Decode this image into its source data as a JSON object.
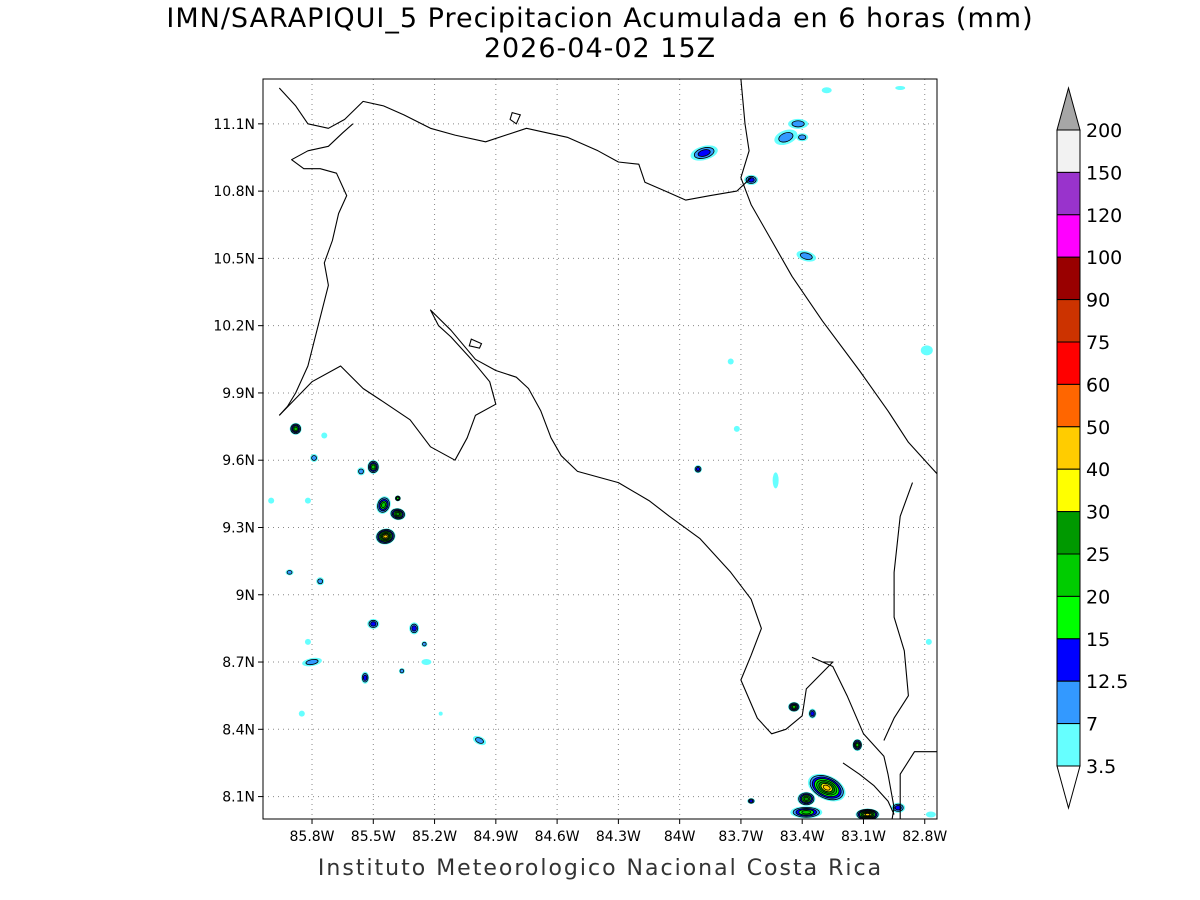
{
  "title": {
    "line1": "IMN/SARAPIQUI_5 Precipitacion Acumulada en 6 horas (mm)",
    "line2": "2026-04-02 15Z"
  },
  "footer": "Instituto Meteorologico Nacional Costa Rica",
  "map": {
    "lon_range": [
      -86.04,
      -82.74
    ],
    "lat_range": [
      8.0,
      11.3
    ],
    "lon_ticks": [
      {
        "v": -85.8,
        "label": "85.8W"
      },
      {
        "v": -85.5,
        "label": "85.5W"
      },
      {
        "v": -85.2,
        "label": "85.2W"
      },
      {
        "v": -84.9,
        "label": "84.9W"
      },
      {
        "v": -84.6,
        "label": "84.6W"
      },
      {
        "v": -84.3,
        "label": "84.3W"
      },
      {
        "v": -84.0,
        "label": "84W"
      },
      {
        "v": -83.7,
        "label": "83.7W"
      },
      {
        "v": -83.4,
        "label": "83.4W"
      },
      {
        "v": -83.1,
        "label": "83.1W"
      },
      {
        "v": -82.8,
        "label": "82.8W"
      }
    ],
    "lat_ticks": [
      {
        "v": 8.1,
        "label": "8.1N"
      },
      {
        "v": 8.4,
        "label": "8.4N"
      },
      {
        "v": 8.7,
        "label": "8.7N"
      },
      {
        "v": 9.0,
        "label": "9N"
      },
      {
        "v": 9.3,
        "label": "9.3N"
      },
      {
        "v": 9.6,
        "label": "9.6N"
      },
      {
        "v": 9.9,
        "label": "9.9N"
      },
      {
        "v": 10.2,
        "label": "10.2N"
      },
      {
        "v": 10.5,
        "label": "10.5N"
      },
      {
        "v": 10.8,
        "label": "10.8N"
      },
      {
        "v": 11.1,
        "label": "11.1N"
      }
    ],
    "grid": "dotted",
    "coastline": [
      [
        [
          -85.96,
          11.26
        ],
        [
          -85.88,
          11.18
        ],
        [
          -85.82,
          11.1
        ],
        [
          -85.72,
          11.08
        ],
        [
          -85.64,
          11.12
        ],
        [
          -85.55,
          11.2
        ],
        [
          -85.45,
          11.18
        ],
        [
          -85.35,
          11.14
        ],
        [
          -85.22,
          11.08
        ],
        [
          -85.1,
          11.05
        ],
        [
          -84.95,
          11.02
        ],
        [
          -84.75,
          11.08
        ],
        [
          -84.55,
          11.04
        ],
        [
          -84.4,
          10.98
        ],
        [
          -84.3,
          10.93
        ],
        [
          -84.2,
          10.92
        ],
        [
          -84.17,
          10.84
        ],
        [
          -84.07,
          10.8
        ],
        [
          -83.97,
          10.76
        ],
        [
          -83.85,
          10.78
        ],
        [
          -83.72,
          10.8
        ],
        [
          -83.65,
          10.86
        ]
      ],
      [
        [
          -83.7,
          11.3
        ],
        [
          -83.68,
          11.1
        ],
        [
          -83.66,
          10.98
        ],
        [
          -83.7,
          10.86
        ],
        [
          -83.65,
          10.74
        ],
        [
          -83.55,
          10.58
        ],
        [
          -83.45,
          10.42
        ],
        [
          -83.3,
          10.22
        ],
        [
          -83.12,
          10.0
        ],
        [
          -82.98,
          9.82
        ],
        [
          -82.88,
          9.68
        ],
        [
          -82.78,
          9.58
        ],
        [
          -82.74,
          9.54
        ]
      ],
      [
        [
          -85.96,
          9.8
        ],
        [
          -85.92,
          9.84
        ],
        [
          -85.88,
          9.9
        ],
        [
          -85.82,
          10.02
        ],
        [
          -85.77,
          10.2
        ],
        [
          -85.72,
          10.38
        ],
        [
          -85.74,
          10.48
        ],
        [
          -85.7,
          10.58
        ],
        [
          -85.67,
          10.7
        ],
        [
          -85.63,
          10.78
        ],
        [
          -85.68,
          10.88
        ],
        [
          -85.76,
          10.9
        ],
        [
          -85.84,
          10.9
        ],
        [
          -85.9,
          10.94
        ],
        [
          -85.82,
          10.98
        ],
        [
          -85.72,
          11.0
        ],
        [
          -85.65,
          11.06
        ],
        [
          -85.6,
          11.1
        ]
      ],
      [
        [
          -85.96,
          9.8
        ],
        [
          -85.8,
          9.95
        ],
        [
          -85.66,
          10.02
        ],
        [
          -85.55,
          9.92
        ],
        [
          -85.45,
          9.86
        ],
        [
          -85.32,
          9.78
        ],
        [
          -85.22,
          9.66
        ],
        [
          -85.1,
          9.6
        ],
        [
          -85.04,
          9.7
        ],
        [
          -85.0,
          9.8
        ],
        [
          -84.9,
          9.85
        ],
        [
          -84.93,
          9.95
        ],
        [
          -85.02,
          10.05
        ],
        [
          -85.12,
          10.15
        ],
        [
          -85.18,
          10.2
        ],
        [
          -85.22,
          10.27
        ],
        [
          -85.12,
          10.18
        ],
        [
          -85.0,
          10.05
        ],
        [
          -84.9,
          10.0
        ],
        [
          -84.8,
          9.97
        ],
        [
          -84.74,
          9.92
        ],
        [
          -84.68,
          9.82
        ],
        [
          -84.63,
          9.7
        ],
        [
          -84.58,
          9.62
        ],
        [
          -84.5,
          9.55
        ],
        [
          -84.3,
          9.5
        ],
        [
          -84.15,
          9.42
        ],
        [
          -84.05,
          9.35
        ],
        [
          -83.9,
          9.25
        ],
        [
          -83.75,
          9.1
        ],
        [
          -83.65,
          8.98
        ],
        [
          -83.6,
          8.85
        ],
        [
          -83.65,
          8.73
        ],
        [
          -83.7,
          8.62
        ],
        [
          -83.62,
          8.45
        ],
        [
          -83.55,
          8.38
        ],
        [
          -83.48,
          8.4
        ],
        [
          -83.4,
          8.46
        ],
        [
          -83.38,
          8.58
        ],
        [
          -83.25,
          8.7
        ],
        [
          -83.3,
          8.7
        ],
        [
          -83.35,
          8.72
        ],
        [
          -83.25,
          8.68
        ],
        [
          -83.18,
          8.55
        ],
        [
          -83.1,
          8.38
        ],
        [
          -83.0,
          8.28
        ],
        [
          -82.98,
          8.2
        ],
        [
          -82.95,
          8.05
        ],
        [
          -82.96,
          8.0
        ]
      ],
      [
        [
          -83.2,
          8.25
        ],
        [
          -83.12,
          8.2
        ],
        [
          -83.05,
          8.15
        ],
        [
          -82.98,
          8.08
        ],
        [
          -82.95,
          8.02
        ]
      ],
      [
        [
          -82.74,
          8.3
        ],
        [
          -82.85,
          8.3
        ],
        [
          -82.92,
          8.2
        ],
        [
          -82.92,
          8.0
        ]
      ],
      [
        [
          -82.86,
          9.5
        ],
        [
          -82.92,
          9.35
        ],
        [
          -82.95,
          9.1
        ],
        [
          -82.95,
          8.9
        ],
        [
          -82.9,
          8.75
        ],
        [
          -82.88,
          8.55
        ],
        [
          -82.95,
          8.45
        ],
        [
          -83.0,
          8.35
        ]
      ]
    ],
    "islands": [
      [
        [
          -84.82,
          11.15
        ],
        [
          -84.78,
          11.14
        ],
        [
          -84.8,
          11.1
        ],
        [
          -84.83,
          11.12
        ]
      ],
      [
        [
          -85.02,
          10.14
        ],
        [
          -84.97,
          10.12
        ],
        [
          -84.98,
          10.1
        ],
        [
          -85.03,
          10.11
        ]
      ]
    ],
    "cells": [
      {
        "lon": -83.88,
        "lat": 10.97,
        "rx": 14,
        "ry": 7,
        "level": 3,
        "rot": -15
      },
      {
        "lon": -83.48,
        "lat": 11.04,
        "rx": 12,
        "ry": 7,
        "level": 2,
        "rot": -20
      },
      {
        "lon": -83.42,
        "lat": 11.1,
        "rx": 10,
        "ry": 5,
        "level": 2,
        "rot": 0
      },
      {
        "lon": -83.4,
        "lat": 11.04,
        "rx": 6,
        "ry": 4,
        "level": 2,
        "rot": 0
      },
      {
        "lon": -83.65,
        "lat": 10.85,
        "rx": 7,
        "ry": 5,
        "level": 3,
        "rot": 0
      },
      {
        "lon": -83.28,
        "lat": 11.25,
        "rx": 5,
        "ry": 3,
        "level": 1,
        "rot": 0
      },
      {
        "lon": -82.92,
        "lat": 11.26,
        "rx": 5,
        "ry": 2,
        "level": 1,
        "rot": 0
      },
      {
        "lon": -83.38,
        "lat": 10.51,
        "rx": 10,
        "ry": 5,
        "level": 2,
        "rot": 15
      },
      {
        "lon": -82.79,
        "lat": 10.09,
        "rx": 6,
        "ry": 5,
        "level": 1,
        "rot": 0
      },
      {
        "lon": -83.75,
        "lat": 10.04,
        "rx": 3,
        "ry": 3,
        "level": 1,
        "rot": 0
      },
      {
        "lon": -83.72,
        "lat": 9.74,
        "rx": 3,
        "ry": 3,
        "level": 1,
        "rot": 0
      },
      {
        "lon": -83.91,
        "lat": 9.56,
        "rx": 4,
        "ry": 4,
        "level": 3,
        "rot": 0
      },
      {
        "lon": -83.53,
        "lat": 9.51,
        "rx": 3,
        "ry": 8,
        "level": 1,
        "rot": 0
      },
      {
        "lon": -85.88,
        "lat": 9.74,
        "rx": 6,
        "ry": 6,
        "level": 5,
        "rot": 0
      },
      {
        "lon": -85.79,
        "lat": 9.61,
        "rx": 4,
        "ry": 4,
        "level": 2,
        "rot": 0
      },
      {
        "lon": -85.74,
        "lat": 9.71,
        "rx": 3,
        "ry": 3,
        "level": 1,
        "rot": 0
      },
      {
        "lon": -85.56,
        "lat": 9.55,
        "rx": 4,
        "ry": 4,
        "level": 2,
        "rot": 0
      },
      {
        "lon": -85.5,
        "lat": 9.57,
        "rx": 6,
        "ry": 7,
        "level": 5,
        "rot": 0
      },
      {
        "lon": -85.45,
        "lat": 9.4,
        "rx": 7,
        "ry": 9,
        "level": 5,
        "rot": 20
      },
      {
        "lon": -85.38,
        "lat": 9.36,
        "rx": 8,
        "ry": 6,
        "level": 6,
        "rot": 10
      },
      {
        "lon": -85.44,
        "lat": 9.26,
        "rx": 10,
        "ry": 8,
        "level": 8,
        "rot": -10
      },
      {
        "lon": -85.38,
        "lat": 9.43,
        "rx": 3,
        "ry": 3,
        "level": 4,
        "rot": 0
      },
      {
        "lon": -85.76,
        "lat": 9.06,
        "rx": 4,
        "ry": 4,
        "level": 2,
        "rot": 0
      },
      {
        "lon": -85.91,
        "lat": 9.1,
        "rx": 4,
        "ry": 3,
        "level": 2,
        "rot": 0
      },
      {
        "lon": -85.5,
        "lat": 8.87,
        "rx": 6,
        "ry": 5,
        "level": 3,
        "rot": 0
      },
      {
        "lon": -85.3,
        "lat": 8.85,
        "rx": 5,
        "ry": 6,
        "level": 3,
        "rot": 0
      },
      {
        "lon": -85.25,
        "lat": 8.78,
        "rx": 3,
        "ry": 3,
        "level": 2,
        "rot": 0
      },
      {
        "lon": -85.8,
        "lat": 8.7,
        "rx": 10,
        "ry": 4,
        "level": 2,
        "rot": -10
      },
      {
        "lon": -85.54,
        "lat": 8.63,
        "rx": 4,
        "ry": 6,
        "level": 3,
        "rot": 0
      },
      {
        "lon": -85.24,
        "lat": 8.7,
        "rx": 5,
        "ry": 3,
        "level": 1,
        "rot": 0
      },
      {
        "lon": -85.36,
        "lat": 8.66,
        "rx": 3,
        "ry": 3,
        "level": 2,
        "rot": 0
      },
      {
        "lon": -84.98,
        "lat": 8.35,
        "rx": 7,
        "ry": 4,
        "level": 2,
        "rot": 25
      },
      {
        "lon": -85.82,
        "lat": 8.79,
        "rx": 3,
        "ry": 3,
        "level": 1,
        "rot": 0
      },
      {
        "lon": -86.0,
        "lat": 9.42,
        "rx": 3,
        "ry": 3,
        "level": 1,
        "rot": 0
      },
      {
        "lon": -85.82,
        "lat": 9.42,
        "rx": 3,
        "ry": 3,
        "level": 1,
        "rot": 0
      },
      {
        "lon": -85.85,
        "lat": 8.47,
        "rx": 3,
        "ry": 3,
        "level": 1,
        "rot": 0
      },
      {
        "lon": -83.44,
        "lat": 8.5,
        "rx": 6,
        "ry": 5,
        "level": 5,
        "rot": 0
      },
      {
        "lon": -83.35,
        "lat": 8.47,
        "rx": 4,
        "ry": 5,
        "level": 3,
        "rot": 0
      },
      {
        "lon": -83.13,
        "lat": 8.33,
        "rx": 5,
        "ry": 6,
        "level": 5,
        "rot": 0
      },
      {
        "lon": -83.28,
        "lat": 8.14,
        "rx": 20,
        "ry": 12,
        "level": 8,
        "rot": 25
      },
      {
        "lon": -83.38,
        "lat": 8.09,
        "rx": 9,
        "ry": 7,
        "level": 6,
        "rot": 0
      },
      {
        "lon": -83.38,
        "lat": 8.03,
        "rx": 16,
        "ry": 6,
        "level": 5,
        "rot": 0
      },
      {
        "lon": -83.08,
        "lat": 8.02,
        "rx": 12,
        "ry": 6,
        "level": 8,
        "rot": 0
      },
      {
        "lon": -82.93,
        "lat": 8.05,
        "rx": 7,
        "ry": 5,
        "level": 3,
        "rot": 0
      },
      {
        "lon": -83.65,
        "lat": 8.08,
        "rx": 4,
        "ry": 3,
        "level": 3,
        "rot": 0
      },
      {
        "lon": -82.77,
        "lat": 8.02,
        "rx": 5,
        "ry": 3,
        "level": 1,
        "rot": 0
      },
      {
        "lon": -82.78,
        "lat": 8.79,
        "rx": 3,
        "ry": 3,
        "level": 1,
        "rot": 0
      },
      {
        "lon": -85.17,
        "lat": 8.47,
        "rx": 2,
        "ry": 2,
        "level": 1,
        "rot": 0
      }
    ]
  },
  "colorbar": {
    "labels": [
      "3.5",
      "7",
      "12.5",
      "15",
      "20",
      "25",
      "30",
      "40",
      "50",
      "60",
      "75",
      "90",
      "100",
      "120",
      "150",
      "200"
    ],
    "colors": [
      "#66ffff",
      "#3399ff",
      "#0000ff",
      "#00ff00",
      "#00cc00",
      "#009900",
      "#ffff00",
      "#ffcc00",
      "#ff6600",
      "#ff0000",
      "#cc3300",
      "#990000",
      "#ff00ff",
      "#9933cc",
      "#f2f2f2"
    ],
    "top_arrow_color": "#a6a6a6",
    "bottom_arrow_color": "#ffffff"
  }
}
